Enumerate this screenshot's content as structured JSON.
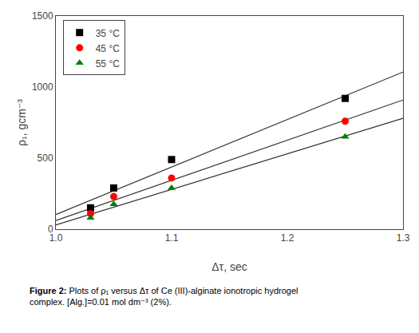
{
  "chart_data": {
    "type": "scatter",
    "x_title": "Δτ, sec",
    "y_title": "ρ₁, gcm⁻³",
    "caption_label": "Figure 2:",
    "caption_lines": [
      "Plots of ρ₁ versus Δτ of Ce (III)-alginate ionotropic hydrogel",
      "complex. [Alg.]=0.01 mol dm⁻³ (2%)."
    ],
    "series": [
      {
        "name": "35 °C",
        "marker": "square",
        "color": "black",
        "x": [
          1.03,
          1.05,
          1.1,
          1.25
        ],
        "values": [
          150,
          290,
          490,
          920
        ],
        "fit": {
          "x": [
            1.0,
            1.3
          ],
          "values": [
            103.41,
            1105.52
          ],
          "color": "#2d2d2d"
        }
      },
      {
        "name": "45 °C",
        "marker": "circle",
        "color": "red",
        "x": [
          1.03,
          1.05,
          1.1,
          1.25
        ],
        "values": [
          110,
          230,
          360,
          760
        ],
        "fit": {
          "x": [
            1.0,
            1.3
          ],
          "values": [
            61.25,
            908.93
          ],
          "color": "#2d2d2d"
        }
      },
      {
        "name": "55 °C",
        "marker": "triangle-up",
        "color": "green",
        "x": [
          1.03,
          1.05,
          1.1,
          1.25
        ],
        "values": [
          80,
          175,
          290,
          650
        ],
        "fit": {
          "x": [
            1.0,
            1.3
          ],
          "values": [
            30,
            780
          ],
          "color": "#2d2d2d"
        }
      }
    ],
    "xlim": [
      1.0,
      1.3
    ],
    "ylim": [
      0,
      1500
    ],
    "xticks": [
      {
        "value": 1.0,
        "label": "1.0"
      },
      1.1,
      1.2,
      1.3
    ],
    "yticks": [
      0,
      500,
      1000,
      1500
    ],
    "grid": false,
    "legend": "upper left"
  }
}
